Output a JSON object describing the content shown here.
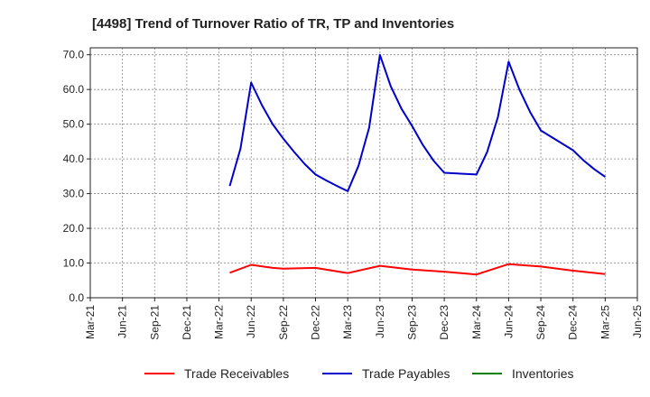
{
  "chart_data": {
    "type": "line",
    "title": "[4498]  Trend of Turnover Ratio of TR, TP and Inventories",
    "xlabel": "",
    "ylabel": "",
    "ylim": [
      0,
      72
    ],
    "y_ticks": [
      0,
      10,
      20,
      30,
      40,
      50,
      60,
      70
    ],
    "y_tick_labels": [
      "0.0",
      "10.0",
      "20.0",
      "30.0",
      "40.0",
      "50.0",
      "60.0",
      "70.0"
    ],
    "x_range": [
      "2021-03",
      "2025-06"
    ],
    "x_tick_labels": [
      "Mar-21",
      "Jun-21",
      "Sep-21",
      "Dec-21",
      "Mar-22",
      "Jun-22",
      "Sep-22",
      "Dec-22",
      "Mar-23",
      "Jun-23",
      "Sep-23",
      "Dec-23",
      "Mar-24",
      "Jun-24",
      "Sep-24",
      "Dec-24",
      "Mar-25",
      "Jun-25"
    ],
    "grid": true,
    "legend_position": "bottom",
    "series": [
      {
        "name": "Trade Receivables",
        "color": "#ff0000",
        "points": [
          [
            "2022-04",
            7.2
          ],
          [
            "2022-06",
            9.5
          ],
          [
            "2022-08",
            8.6
          ],
          [
            "2022-09",
            8.4
          ],
          [
            "2022-12",
            8.6
          ],
          [
            "2023-03",
            7.1
          ],
          [
            "2023-06",
            9.2
          ],
          [
            "2023-09",
            8.1
          ],
          [
            "2023-12",
            7.5
          ],
          [
            "2024-03",
            6.7
          ],
          [
            "2024-06",
            9.7
          ],
          [
            "2024-09",
            9.0
          ],
          [
            "2024-12",
            7.8
          ],
          [
            "2025-03",
            6.8
          ]
        ]
      },
      {
        "name": "Trade Payables",
        "color": "#0000cc",
        "points": [
          [
            "2022-04",
            32.2
          ],
          [
            "2022-05",
            43.0
          ],
          [
            "2022-06",
            62.0
          ],
          [
            "2022-07",
            55.5
          ],
          [
            "2022-08",
            50.0
          ],
          [
            "2022-09",
            45.8
          ],
          [
            "2022-10",
            42.0
          ],
          [
            "2022-11",
            38.5
          ],
          [
            "2022-12",
            35.5
          ],
          [
            "2023-01",
            33.8
          ],
          [
            "2023-02",
            32.2
          ],
          [
            "2023-03",
            30.7
          ],
          [
            "2023-04",
            38.0
          ],
          [
            "2023-05",
            49.0
          ],
          [
            "2023-06",
            70.0
          ],
          [
            "2023-07",
            61.0
          ],
          [
            "2023-08",
            54.5
          ],
          [
            "2023-09",
            49.5
          ],
          [
            "2023-10",
            44.0
          ],
          [
            "2023-11",
            39.5
          ],
          [
            "2023-12",
            36.0
          ],
          [
            "2024-03",
            35.5
          ],
          [
            "2024-04",
            42.0
          ],
          [
            "2024-05",
            52.0
          ],
          [
            "2024-06",
            68.0
          ],
          [
            "2024-07",
            60.0
          ],
          [
            "2024-08",
            53.5
          ],
          [
            "2024-09",
            48.2
          ],
          [
            "2024-12",
            42.5
          ],
          [
            "2025-01",
            39.5
          ],
          [
            "2025-02",
            37.0
          ],
          [
            "2025-03",
            34.8
          ]
        ]
      },
      {
        "name": "Inventories",
        "color": "#008000",
        "points": []
      }
    ]
  }
}
